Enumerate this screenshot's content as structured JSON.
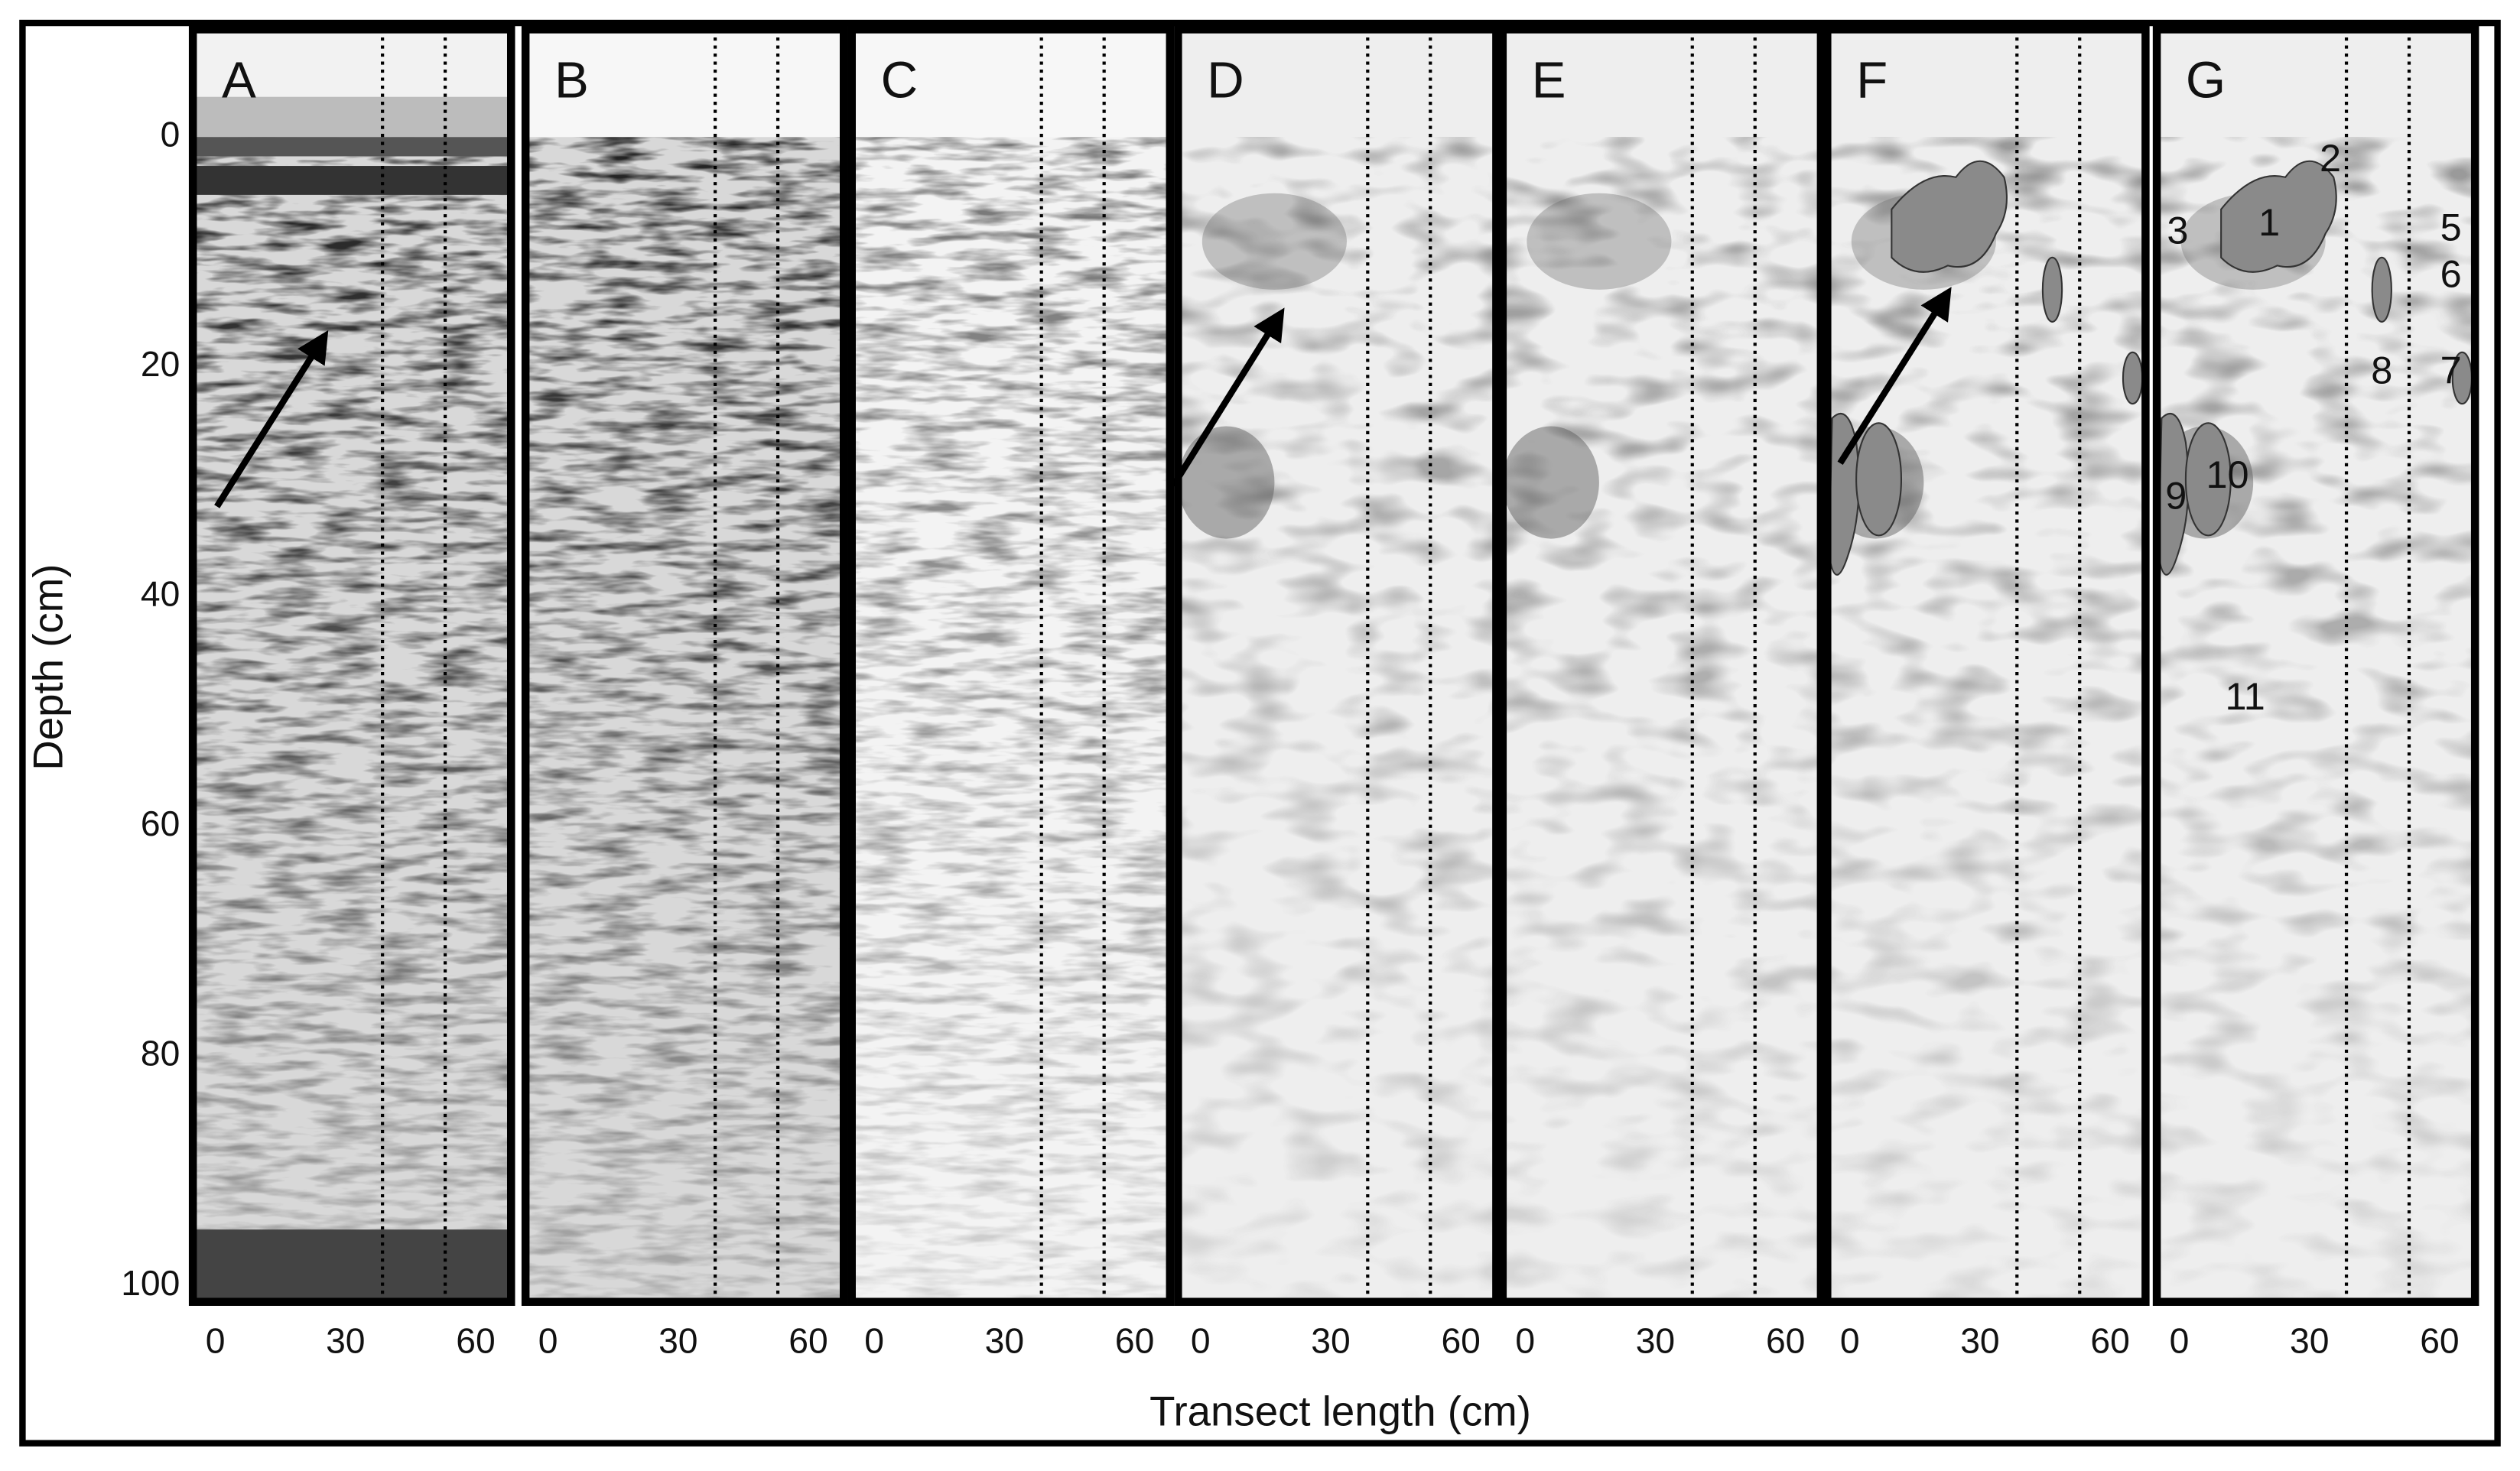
{
  "figure": {
    "panels": [
      {
        "label": "A"
      },
      {
        "label": "B"
      },
      {
        "label": "C"
      },
      {
        "label": "D"
      },
      {
        "label": "E"
      },
      {
        "label": "F"
      },
      {
        "label": "G"
      }
    ],
    "y_axis": {
      "label": "Depth (cm)",
      "ticks": [
        0,
        20,
        40,
        60,
        80,
        100
      ]
    },
    "x_axis": {
      "label": "Transect length (cm)",
      "ticks": [
        0,
        30,
        60
      ]
    },
    "annotations": [
      "1",
      "2",
      "3",
      "5",
      "6",
      "7",
      "8",
      "9",
      "10",
      "11"
    ]
  }
}
